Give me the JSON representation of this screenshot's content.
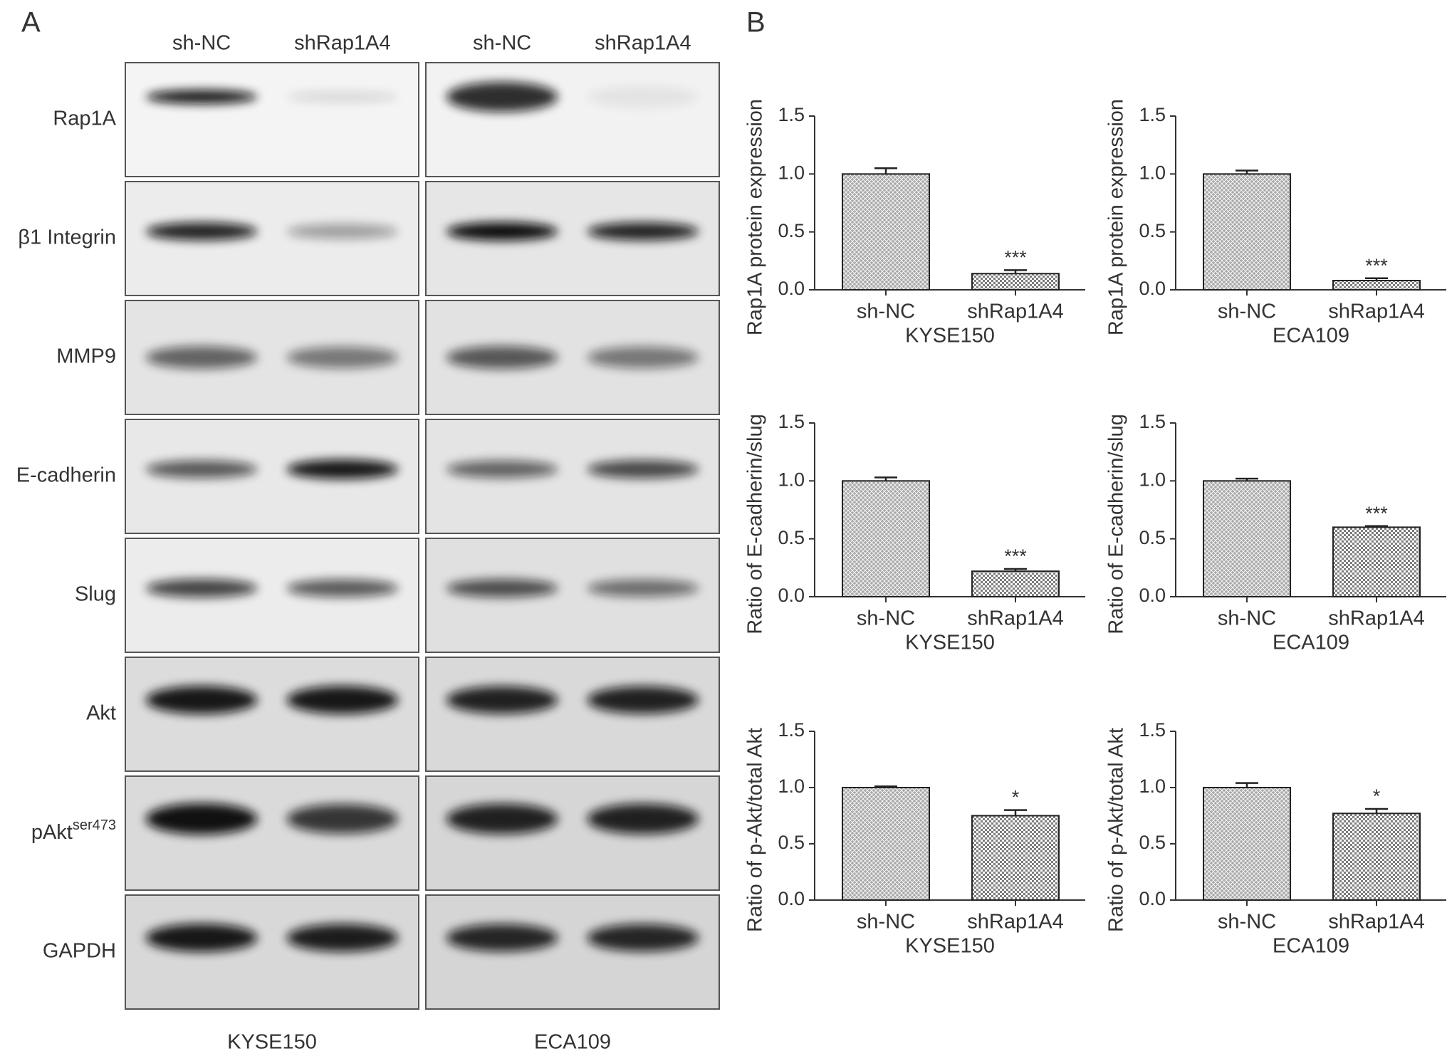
{
  "panel_a": {
    "label": "A",
    "lanes": [
      "sh-NC",
      "shRap1A4",
      "sh-NC",
      "shRap1A4"
    ],
    "rows": [
      "Rap1A",
      "β1 Integrin",
      "MMP9",
      "E-cadherin",
      "Slug",
      "Akt",
      {
        "text": "pAkt",
        "sup": "ser473"
      },
      "GAPDH"
    ],
    "cell_lines": [
      "KYSE150",
      "ECA109"
    ]
  },
  "panel_b": {
    "label": "B"
  },
  "chart_data": [
    {
      "type": "bar",
      "ylabel": "Rap1A protein expression",
      "xlabel": "KYSE150",
      "categories": [
        "sh-NC",
        "shRap1A4"
      ],
      "values": [
        1.0,
        0.14
      ],
      "errors": [
        0.05,
        0.03
      ],
      "significance": [
        null,
        "***"
      ],
      "colors": [
        "#a9a9a9",
        "#7d7d7d"
      ],
      "ylim": [
        0,
        1.5
      ],
      "yticks": [
        {
          "value": 0,
          "label": "0.0"
        },
        {
          "value": 0.5,
          "label": "0.5"
        },
        {
          "value": 1,
          "label": "1.0"
        },
        {
          "value": 1.5,
          "label": "1.5"
        }
      ]
    },
    {
      "type": "bar",
      "ylabel": "Rap1A protein expression",
      "xlabel": "ECA109",
      "categories": [
        "sh-NC",
        "shRap1A4"
      ],
      "values": [
        1.0,
        0.08
      ],
      "errors": [
        0.03,
        0.02
      ],
      "significance": [
        null,
        "***"
      ],
      "colors": [
        "#a9a9a9",
        "#7d7d7d"
      ],
      "ylim": [
        0,
        1.5
      ],
      "yticks": [
        {
          "value": 0,
          "label": "0.0"
        },
        {
          "value": 0.5,
          "label": "0.5"
        },
        {
          "value": 1,
          "label": "1.0"
        },
        {
          "value": 1.5,
          "label": "1.5"
        }
      ]
    },
    {
      "type": "bar",
      "ylabel": "Ratio of E-cadherin/slug",
      "xlabel": "KYSE150",
      "categories": [
        "sh-NC",
        "shRap1A4"
      ],
      "values": [
        1.0,
        0.22
      ],
      "errors": [
        0.03,
        0.02
      ],
      "significance": [
        null,
        "***"
      ],
      "colors": [
        "#a9a9a9",
        "#7d7d7d"
      ],
      "ylim": [
        0,
        1.5
      ],
      "yticks": [
        {
          "value": 0,
          "label": "0.0"
        },
        {
          "value": 0.5,
          "label": "0.5"
        },
        {
          "value": 1,
          "label": "1.0"
        },
        {
          "value": 1.5,
          "label": "1.5"
        }
      ]
    },
    {
      "type": "bar",
      "ylabel": "Ratio of E-cadherin/slug",
      "xlabel": "ECA109",
      "categories": [
        "sh-NC",
        "shRap1A4"
      ],
      "values": [
        1.0,
        0.6
      ],
      "errors": [
        0.02,
        0.01
      ],
      "significance": [
        null,
        "***"
      ],
      "colors": [
        "#a9a9a9",
        "#7d7d7d"
      ],
      "ylim": [
        0,
        1.5
      ],
      "yticks": [
        {
          "value": 0,
          "label": "0.0"
        },
        {
          "value": 0.5,
          "label": "0.5"
        },
        {
          "value": 1,
          "label": "1.0"
        },
        {
          "value": 1.5,
          "label": "1.5"
        }
      ]
    },
    {
      "type": "bar",
      "ylabel": "Ratio of p-Akt/total Akt",
      "xlabel": "KYSE150",
      "categories": [
        "sh-NC",
        "shRap1A4"
      ],
      "values": [
        1.0,
        0.75
      ],
      "errors": [
        0.01,
        0.05
      ],
      "significance": [
        null,
        "*"
      ],
      "colors": [
        "#a9a9a9",
        "#7d7d7d"
      ],
      "ylim": [
        0,
        1.5
      ],
      "yticks": [
        {
          "value": 0,
          "label": "0.0"
        },
        {
          "value": 0.5,
          "label": "0.5"
        },
        {
          "value": 1,
          "label": "1.0"
        },
        {
          "value": 1.5,
          "label": "1.5"
        }
      ]
    },
    {
      "type": "bar",
      "ylabel": "Ratio of p-Akt/total Akt",
      "xlabel": "ECA109",
      "categories": [
        "sh-NC",
        "shRap1A4"
      ],
      "values": [
        1.0,
        0.77
      ],
      "errors": [
        0.04,
        0.04
      ],
      "significance": [
        null,
        "*"
      ],
      "colors": [
        "#a9a9a9",
        "#7d7d7d"
      ],
      "ylim": [
        0,
        1.5
      ],
      "yticks": [
        {
          "value": 0,
          "label": "0.0"
        },
        {
          "value": 0.5,
          "label": "0.5"
        },
        {
          "value": 1,
          "label": "1.0"
        },
        {
          "value": 1.5,
          "label": "1.5"
        }
      ]
    }
  ]
}
